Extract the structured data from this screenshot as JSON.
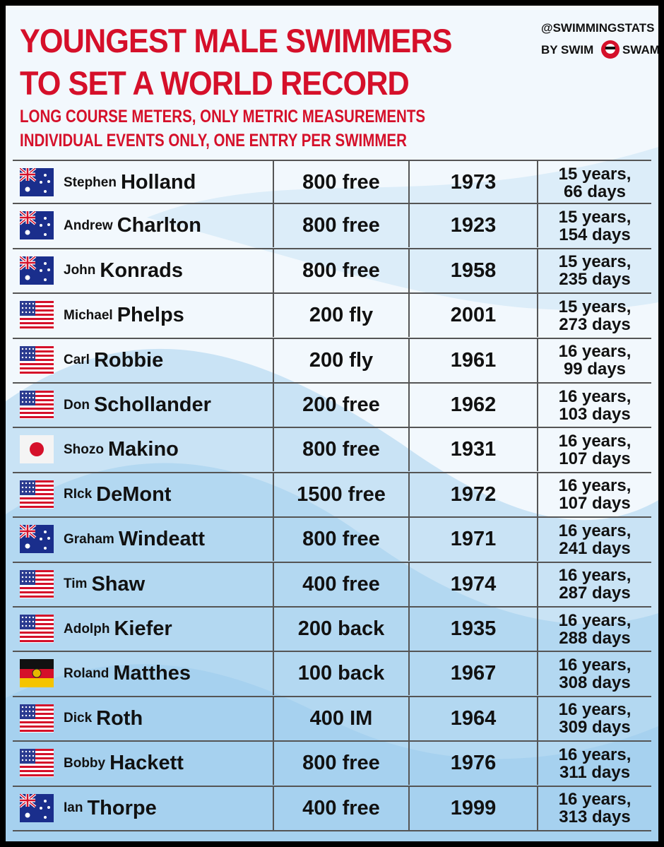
{
  "header": {
    "title_lines": [
      "YOUNGEST MALE SWIMMERS",
      "TO SET A WORLD RECORD"
    ],
    "subtitle_lines": [
      "LONG COURSE METERS, ONLY METRIC MEASUREMENTS",
      "INDIVIDUAL EVENTS ONLY, ONE ENTRY PER SWIMMER"
    ],
    "brand": {
      "handle": "@SWIMMINGSTATS",
      "by": "BY SWIM",
      "swam": "SWAM"
    }
  },
  "table": {
    "rows": [
      {
        "first": "Stephen",
        "last": "Holland",
        "event": "800 free",
        "year": 1973,
        "age": [
          "15 years,",
          "66 days"
        ]
      },
      {
        "first": "Andrew",
        "last": "Charlton",
        "event": "800 free",
        "year": 1923,
        "age": [
          "15 years,",
          "154 days"
        ]
      },
      {
        "first": "John",
        "last": "Konrads",
        "event": "800 free",
        "year": 1958,
        "age": [
          "15 years,",
          "235 days"
        ]
      },
      {
        "first": "Michael",
        "last": "Phelps",
        "event": "200 fly",
        "year": 2001,
        "age": [
          "15 years,",
          "273 days"
        ]
      },
      {
        "first": "Carl",
        "last": "Robbie",
        "event": "200 fly",
        "year": 1961,
        "age": [
          "16 years,",
          "99 days"
        ]
      },
      {
        "first": "Don",
        "last": "Schollander",
        "event": "200 free",
        "year": 1962,
        "age": [
          "16 years,",
          "103 days"
        ]
      },
      {
        "first": "Shozo",
        "last": "Makino",
        "event": "800 free",
        "year": 1931,
        "age": [
          "16 years,",
          "107 days"
        ]
      },
      {
        "first": "RIck",
        "last": "DeMont",
        "event": "1500 free",
        "year": 1972,
        "age": [
          "16 years,",
          "107 days"
        ]
      },
      {
        "first": "Graham",
        "last": "Windeatt",
        "event": "800 free",
        "year": 1971,
        "age": [
          "16 years,",
          "241 days"
        ]
      },
      {
        "first": "Tim",
        "last": "Shaw",
        "event": "400 free",
        "year": 1974,
        "age": [
          "16 years,",
          "287 days"
        ]
      },
      {
        "first": "Adolph",
        "last": "Kiefer",
        "event": "200 back",
        "year": 1935,
        "age": [
          "16 years,",
          "288 days"
        ]
      },
      {
        "first": "Roland",
        "last": "Matthes",
        "event": "100 back",
        "year": 1967,
        "age": [
          "16 years,",
          "308 days"
        ]
      },
      {
        "first": "Dick",
        "last": "Roth",
        "event": "400 IM",
        "year": 1964,
        "age": [
          "16 years,",
          "309 days"
        ]
      },
      {
        "first": "Bobby",
        "last": "Hackett",
        "event": "800 free",
        "year": 1976,
        "age": [
          "16 years,",
          "311 days"
        ]
      },
      {
        "first": "Ian",
        "last": "Thorpe",
        "event": "400 free",
        "year": 1999,
        "age": [
          "16 years,",
          "313 days"
        ]
      }
    ]
  }
}
